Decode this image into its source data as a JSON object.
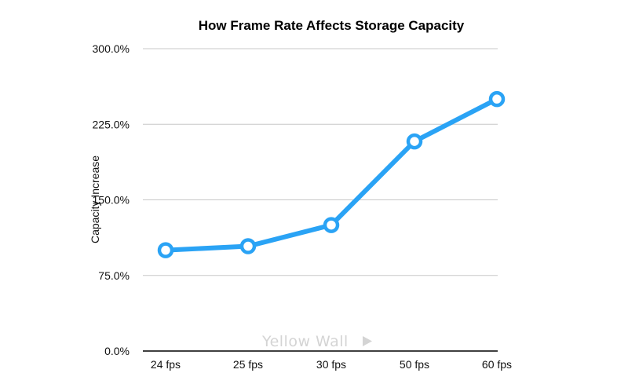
{
  "chart_data": {
    "type": "line",
    "title": "How Frame Rate Affects Storage Capacity",
    "xlabel": "",
    "ylabel": "Capacity Increase",
    "categories": [
      "24 fps",
      "25 fps",
      "30 fps",
      "50 fps",
      "60 fps"
    ],
    "series": [
      {
        "values": [
          100.0,
          104.0,
          125.0,
          208.0,
          250.0
        ]
      }
    ],
    "ylim": [
      0,
      300
    ],
    "yticks": [
      0,
      75,
      150,
      225,
      300
    ],
    "ytick_labels": [
      "0.0%",
      "75.0%",
      "150.0%",
      "225.0%",
      "300.0%"
    ],
    "grid": true,
    "legend": "none",
    "line_color": "#2aa3f5",
    "watermark": "Yellow Wall"
  }
}
